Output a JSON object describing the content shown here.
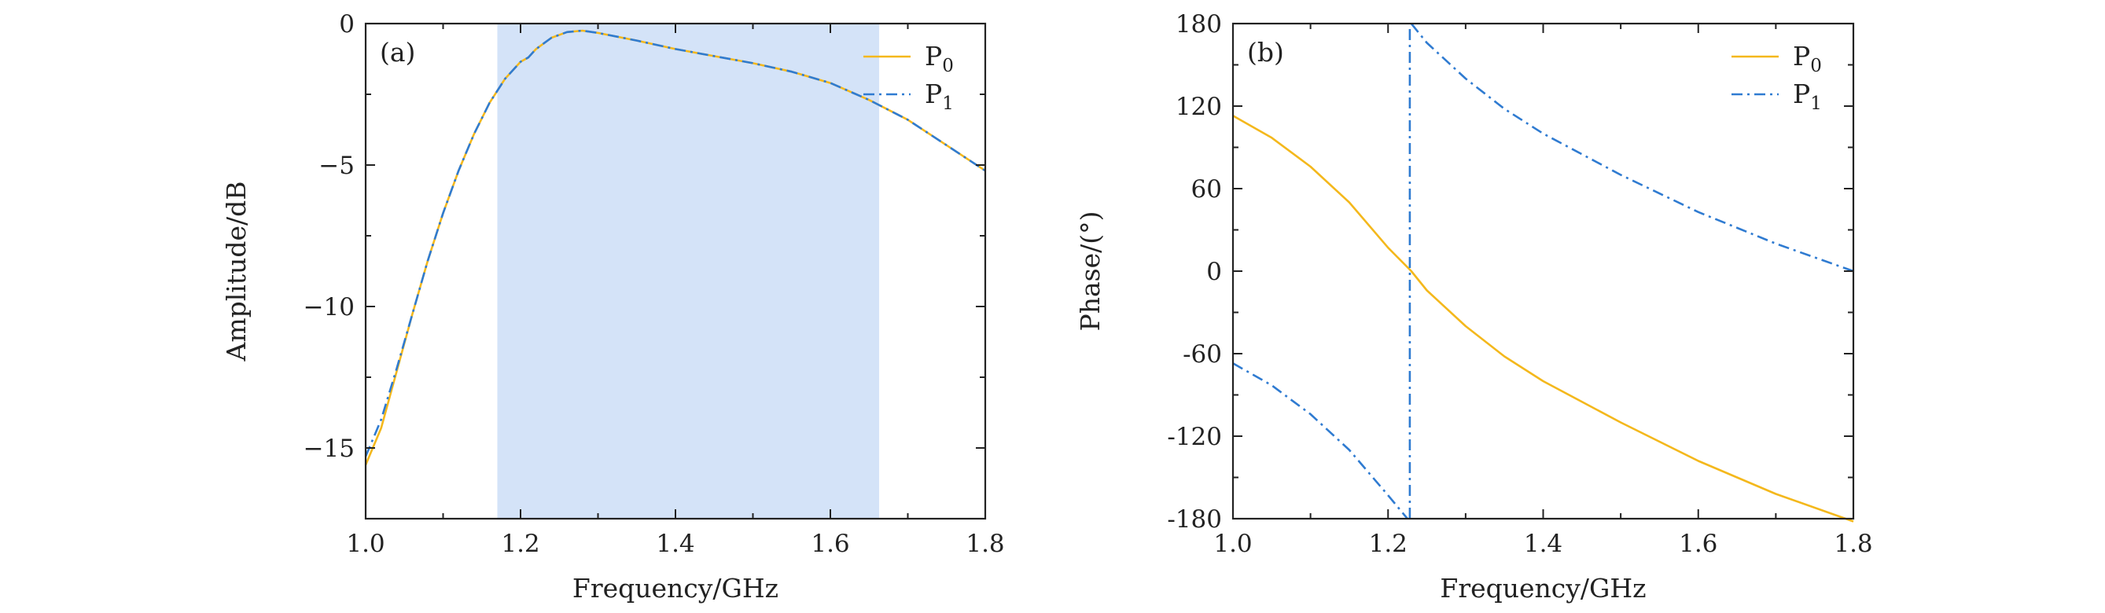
{
  "chart_data": [
    {
      "type": "line",
      "panel_label": "(a)",
      "xlabel": "Frequency/GHz",
      "ylabel": "Amplitude/dB",
      "xlim": [
        1.0,
        1.8
      ],
      "ylim": [
        -17.5,
        0
      ],
      "xticks": [
        1.0,
        1.2,
        1.4,
        1.6,
        1.8
      ],
      "xtick_labels": [
        "1.0",
        "1.2",
        "1.4",
        "1.6",
        "1.8"
      ],
      "yticks": [
        0,
        -5,
        -10,
        -15
      ],
      "ytick_labels": [
        "0",
        "−5",
        "−10",
        "−15"
      ],
      "highlight_band": [
        1.17,
        1.663
      ],
      "highlight_color": "#d4e3f8",
      "legend": {
        "placement": "top-right",
        "entries": [
          {
            "base": "P",
            "sub": "0"
          },
          {
            "base": "P",
            "sub": "1"
          }
        ]
      },
      "series": [
        {
          "name": "P0",
          "color": "#f4b81c",
          "style": "solid",
          "points": [
            [
              1.0,
              -15.6
            ],
            [
              1.02,
              -14.3
            ],
            [
              1.04,
              -12.3
            ],
            [
              1.06,
              -10.3
            ],
            [
              1.08,
              -8.4
            ],
            [
              1.1,
              -6.7
            ],
            [
              1.12,
              -5.2
            ],
            [
              1.14,
              -3.9
            ],
            [
              1.16,
              -2.8
            ],
            [
              1.18,
              -1.95
            ],
            [
              1.2,
              -1.35
            ],
            [
              1.21,
              -1.2
            ],
            [
              1.22,
              -0.9
            ],
            [
              1.24,
              -0.5
            ],
            [
              1.26,
              -0.3
            ],
            [
              1.28,
              -0.25
            ],
            [
              1.3,
              -0.33
            ],
            [
              1.35,
              -0.6
            ],
            [
              1.4,
              -0.9
            ],
            [
              1.45,
              -1.15
            ],
            [
              1.5,
              -1.4
            ],
            [
              1.55,
              -1.7
            ],
            [
              1.6,
              -2.1
            ],
            [
              1.65,
              -2.7
            ],
            [
              1.7,
              -3.4
            ],
            [
              1.75,
              -4.3
            ],
            [
              1.8,
              -5.2
            ]
          ]
        },
        {
          "name": "P1",
          "color": "#2f7bd1",
          "style": "dashdot",
          "points": [
            [
              1.0,
              -15.3
            ],
            [
              1.02,
              -14.0
            ],
            [
              1.04,
              -12.2
            ],
            [
              1.06,
              -10.3
            ],
            [
              1.08,
              -8.4
            ],
            [
              1.1,
              -6.7
            ],
            [
              1.12,
              -5.2
            ],
            [
              1.14,
              -3.9
            ],
            [
              1.16,
              -2.8
            ],
            [
              1.18,
              -1.95
            ],
            [
              1.2,
              -1.35
            ],
            [
              1.21,
              -1.2
            ],
            [
              1.22,
              -0.9
            ],
            [
              1.24,
              -0.5
            ],
            [
              1.26,
              -0.3
            ],
            [
              1.28,
              -0.25
            ],
            [
              1.3,
              -0.33
            ],
            [
              1.35,
              -0.6
            ],
            [
              1.4,
              -0.9
            ],
            [
              1.45,
              -1.15
            ],
            [
              1.5,
              -1.4
            ],
            [
              1.55,
              -1.7
            ],
            [
              1.6,
              -2.1
            ],
            [
              1.65,
              -2.7
            ],
            [
              1.7,
              -3.4
            ],
            [
              1.75,
              -4.3
            ],
            [
              1.8,
              -5.2
            ]
          ]
        }
      ]
    },
    {
      "type": "line",
      "panel_label": "(b)",
      "xlabel": "Frequency/GHz",
      "ylabel": "Phase/(°)",
      "xlim": [
        1.0,
        1.8
      ],
      "ylim": [
        -180,
        180
      ],
      "xticks": [
        1.0,
        1.2,
        1.4,
        1.6,
        1.8
      ],
      "xtick_labels": [
        "1.0",
        "1.2",
        "1.4",
        "1.6",
        "1.8"
      ],
      "yticks": [
        180,
        120,
        60,
        0,
        -60,
        -120,
        -180
      ],
      "ytick_labels": [
        "180",
        "120",
        "60",
        "0",
        "-60",
        "-120",
        "-180"
      ],
      "legend": {
        "placement": "top-right",
        "entries": [
          {
            "base": "P",
            "sub": "0"
          },
          {
            "base": "P",
            "sub": "1"
          }
        ]
      },
      "series": [
        {
          "name": "P0",
          "color": "#f4b81c",
          "style": "solid",
          "points": [
            [
              1.0,
              113
            ],
            [
              1.05,
              97
            ],
            [
              1.1,
              76
            ],
            [
              1.15,
              50
            ],
            [
              1.2,
              17
            ],
            [
              1.23,
              0
            ],
            [
              1.25,
              -14
            ],
            [
              1.3,
              -40
            ],
            [
              1.35,
              -62
            ],
            [
              1.4,
              -80
            ],
            [
              1.5,
              -110
            ],
            [
              1.6,
              -138
            ],
            [
              1.7,
              -162
            ],
            [
              1.8,
              -182
            ]
          ]
        },
        {
          "name": "P1",
          "color": "#2f7bd1",
          "style": "dashdot",
          "points": [
            [
              1.0,
              -67
            ],
            [
              1.05,
              -83
            ],
            [
              1.1,
              -104
            ],
            [
              1.15,
              -130
            ],
            [
              1.2,
              -163
            ],
            [
              1.225,
              -180
            ],
            [
              null,
              null
            ],
            [
              1.228,
              -180
            ],
            [
              1.228,
              180
            ],
            [
              null,
              null
            ],
            [
              1.23,
              180
            ],
            [
              1.25,
              166
            ],
            [
              1.3,
              140
            ],
            [
              1.35,
              118
            ],
            [
              1.4,
              100
            ],
            [
              1.5,
              70
            ],
            [
              1.6,
              43
            ],
            [
              1.7,
              20
            ],
            [
              1.8,
              0
            ]
          ]
        }
      ]
    }
  ]
}
